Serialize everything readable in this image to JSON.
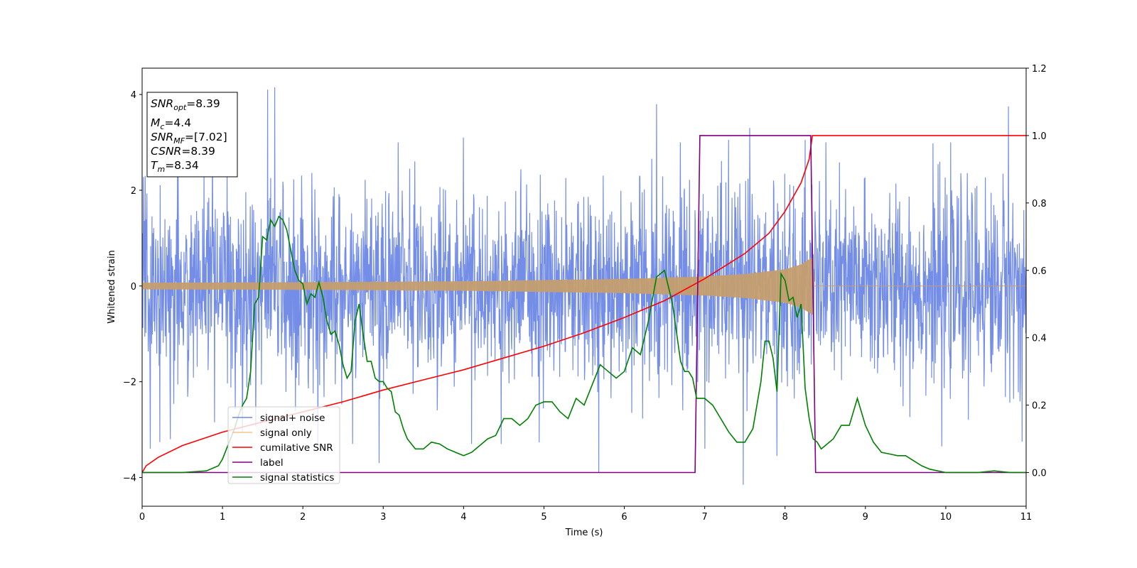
{
  "chart_data": {
    "type": "line",
    "xlabel": "Time (s)",
    "ylabel": "Whitened strain",
    "xlim": [
      0,
      11
    ],
    "ylim_left": [
      -4.6,
      4.55
    ],
    "ylim_right": [
      -0.1,
      1.2
    ],
    "xticks": [
      "0",
      "1",
      "2",
      "3",
      "4",
      "5",
      "6",
      "7",
      "8",
      "9",
      "10",
      "11"
    ],
    "yticks_left": [
      "4",
      "2",
      "0",
      "−2",
      "−4"
    ],
    "yticks_right": [
      "1.2",
      "1.0",
      "0.8",
      "0.6",
      "0.4",
      "0.2",
      "0.0"
    ],
    "info_box": [
      {
        "var": "SNR",
        "sub": "opt",
        "value": "=8.39"
      },
      {
        "var": "M",
        "sub": "c",
        "value": "=4.4"
      },
      {
        "var": "SNR",
        "sub": "MF",
        "value": "=[7.02]"
      },
      {
        "var": "CSNR",
        "sub": "",
        "value": "=8.39"
      },
      {
        "var": "T",
        "sub": "m",
        "value": "=8.34"
      }
    ],
    "legend": {
      "placement": "lower-left",
      "entries": [
        {
          "label": "signal+ noise",
          "color": "#6d88e6"
        },
        {
          "label": "signal only",
          "color": "#f2c58f"
        },
        {
          "label": "cumilative SNR",
          "color": "#ff0000"
        },
        {
          "label": "label",
          "color": "#800080"
        },
        {
          "label": "signal statistics",
          "color": "#008000"
        }
      ]
    },
    "series": [
      {
        "name": "signal+ noise",
        "axis": "left",
        "color": "#6d88e6",
        "description_stats": {
          "std": 1.0,
          "duration": 11,
          "band": [
            -2.2,
            2.2
          ]
        },
        "peaks": [
          {
            "x": 0.04,
            "y": 2.3
          },
          {
            "x": 0.1,
            "y": -3.4
          },
          {
            "x": 0.35,
            "y": -3.2
          },
          {
            "x": 1.56,
            "y": 4.1
          },
          {
            "x": 1.65,
            "y": 4.15
          },
          {
            "x": 1.25,
            "y": -3.05
          },
          {
            "x": 2.95,
            "y": -3.7
          },
          {
            "x": 4.0,
            "y": 3.1
          },
          {
            "x": 4.1,
            "y": -3.3
          },
          {
            "x": 5.68,
            "y": -3.9
          },
          {
            "x": 6.4,
            "y": 3.8
          },
          {
            "x": 7.0,
            "y": -3.4
          },
          {
            "x": 7.3,
            "y": 3.05
          },
          {
            "x": 7.48,
            "y": -4.15
          },
          {
            "x": 7.56,
            "y": 3.3
          },
          {
            "x": 7.9,
            "y": -3.55
          },
          {
            "x": 8.25,
            "y": 3.05
          },
          {
            "x": 9.95,
            "y": -3.35
          },
          {
            "x": 10.78,
            "y": 3.75
          },
          {
            "x": 10.95,
            "y": -3.25
          }
        ]
      },
      {
        "name": "signal only",
        "axis": "left",
        "color": "#c49e6e",
        "envelope": {
          "x": [
            0,
            2,
            4,
            6,
            7,
            7.5,
            8,
            8.2,
            8.34
          ],
          "y": [
            0.07,
            0.08,
            0.1,
            0.15,
            0.2,
            0.25,
            0.35,
            0.45,
            0.6
          ]
        },
        "after_merger": 0
      },
      {
        "name": "cumilative SNR",
        "axis": "right",
        "color": "#ff0000",
        "x": [
          0,
          0.05,
          0.2,
          0.5,
          1.0,
          1.5,
          2.0,
          2.5,
          3.0,
          3.5,
          4.0,
          4.5,
          5.0,
          5.5,
          6.0,
          6.5,
          7.0,
          7.5,
          7.8,
          8.0,
          8.2,
          8.3,
          8.34,
          8.4,
          11.0
        ],
        "y": [
          0.0,
          0.02,
          0.045,
          0.08,
          0.12,
          0.15,
          0.18,
          0.21,
          0.245,
          0.275,
          0.305,
          0.34,
          0.375,
          0.415,
          0.46,
          0.51,
          0.575,
          0.65,
          0.71,
          0.775,
          0.86,
          0.93,
          1.0,
          1.0,
          1.0
        ]
      },
      {
        "name": "label",
        "axis": "right",
        "color": "#800080",
        "x": [
          0,
          6.88,
          6.94,
          8.32,
          8.38,
          11.0
        ],
        "y": [
          0,
          0,
          1,
          1,
          0,
          0
        ]
      },
      {
        "name": "signal statistics",
        "axis": "right",
        "color": "#008000",
        "x": [
          0,
          0.5,
          0.8,
          0.95,
          1.0,
          1.05,
          1.1,
          1.15,
          1.2,
          1.25,
          1.3,
          1.35,
          1.4,
          1.45,
          1.5,
          1.55,
          1.6,
          1.65,
          1.7,
          1.75,
          1.8,
          1.85,
          1.9,
          1.95,
          2.0,
          2.05,
          2.1,
          2.15,
          2.2,
          2.25,
          2.3,
          2.35,
          2.4,
          2.45,
          2.5,
          2.55,
          2.6,
          2.65,
          2.7,
          2.75,
          2.8,
          2.85,
          2.9,
          2.95,
          3.0,
          3.05,
          3.1,
          3.15,
          3.2,
          3.25,
          3.3,
          3.4,
          3.5,
          3.6,
          3.7,
          3.8,
          3.9,
          4.0,
          4.1,
          4.2,
          4.3,
          4.4,
          4.5,
          4.6,
          4.7,
          4.8,
          4.9,
          5.0,
          5.1,
          5.2,
          5.3,
          5.4,
          5.5,
          5.6,
          5.7,
          5.8,
          5.9,
          6.0,
          6.1,
          6.2,
          6.3,
          6.4,
          6.5,
          6.6,
          6.7,
          6.75,
          6.8,
          6.85,
          6.9,
          6.95,
          7.0,
          7.1,
          7.2,
          7.3,
          7.4,
          7.5,
          7.6,
          7.7,
          7.75,
          7.8,
          7.85,
          7.9,
          7.95,
          8.0,
          8.05,
          8.1,
          8.15,
          8.2,
          8.25,
          8.3,
          8.35,
          8.4,
          8.45,
          8.5,
          8.6,
          8.7,
          8.8,
          8.9,
          9.0,
          9.1,
          9.2,
          9.3,
          9.4,
          9.5,
          9.6,
          9.7,
          9.8,
          9.9,
          10.0,
          10.2,
          10.4,
          10.6,
          10.8,
          11.0
        ],
        "y": [
          0.0,
          0.0,
          0.005,
          0.02,
          0.04,
          0.07,
          0.1,
          0.13,
          0.17,
          0.2,
          0.22,
          0.3,
          0.5,
          0.52,
          0.7,
          0.69,
          0.75,
          0.73,
          0.76,
          0.75,
          0.72,
          0.66,
          0.6,
          0.57,
          0.56,
          0.5,
          0.53,
          0.52,
          0.565,
          0.52,
          0.45,
          0.41,
          0.42,
          0.38,
          0.32,
          0.28,
          0.3,
          0.45,
          0.5,
          0.41,
          0.33,
          0.33,
          0.28,
          0.27,
          0.27,
          0.25,
          0.24,
          0.18,
          0.17,
          0.13,
          0.1,
          0.07,
          0.07,
          0.09,
          0.085,
          0.07,
          0.06,
          0.05,
          0.06,
          0.08,
          0.1,
          0.11,
          0.16,
          0.16,
          0.14,
          0.16,
          0.2,
          0.21,
          0.21,
          0.18,
          0.16,
          0.22,
          0.2,
          0.26,
          0.32,
          0.3,
          0.28,
          0.3,
          0.37,
          0.35,
          0.45,
          0.58,
          0.6,
          0.5,
          0.33,
          0.3,
          0.3,
          0.28,
          0.22,
          0.22,
          0.22,
          0.2,
          0.16,
          0.12,
          0.09,
          0.09,
          0.13,
          0.27,
          0.39,
          0.39,
          0.34,
          0.24,
          0.59,
          0.57,
          0.51,
          0.52,
          0.46,
          0.5,
          0.25,
          0.16,
          0.1,
          0.09,
          0.07,
          0.08,
          0.1,
          0.14,
          0.14,
          0.22,
          0.14,
          0.09,
          0.06,
          0.055,
          0.05,
          0.05,
          0.035,
          0.02,
          0.01,
          0.005,
          0.0,
          0.0,
          0.0,
          0.005,
          0.0,
          0.0
        ]
      }
    ]
  }
}
